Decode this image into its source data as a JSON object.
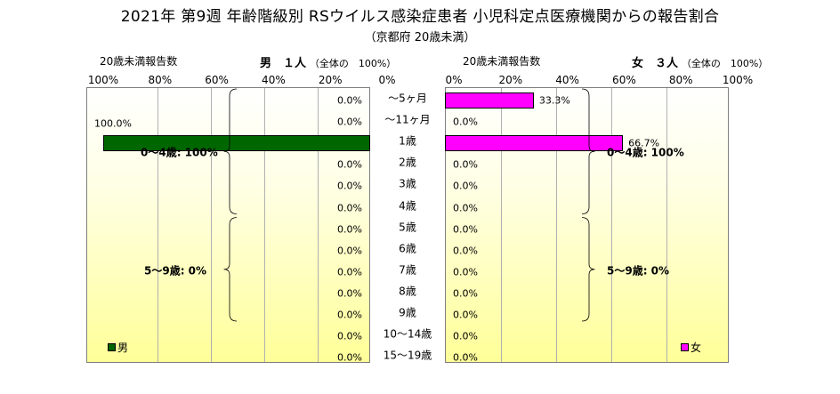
{
  "title": "2021年 第9週 年齢階級別 RSウイルス感染症患者 小児科定点医療機関からの報告割合",
  "subtitle": "（京都府 20歳未満）",
  "chart_data": {
    "type": "bar",
    "categories": [
      "～5ヶ月",
      "～11ヶ月",
      "1歳",
      "2歳",
      "3歳",
      "4歳",
      "5歳",
      "6歳",
      "7歳",
      "8歳",
      "9歳",
      "10～14歳",
      "15～19歳"
    ],
    "xlim": [
      0,
      100
    ],
    "ticks_male": [
      "100%",
      "80%",
      "60%",
      "40%",
      "20%",
      "0%"
    ],
    "ticks_female": [
      "0%",
      "20%",
      "40%",
      "60%",
      "80%",
      "100%"
    ],
    "series": [
      {
        "name": "男",
        "color": "#006600",
        "values": [
          0,
          0,
          100,
          0,
          0,
          0,
          0,
          0,
          0,
          0,
          0,
          0,
          0
        ],
        "labels": [
          "0.0%",
          "0.0%",
          "100.0%",
          "0.0%",
          "0.0%",
          "0.0%",
          "0.0%",
          "0.0%",
          "0.0%",
          "0.0%",
          "0.0%",
          "0.0%",
          "0.0%"
        ],
        "header": {
          "count_label": "20歳未満報告数",
          "sex_count": "男　１人",
          "total_suffix": "（全体の　100%）"
        },
        "groups": [
          {
            "label": "0～4歳: 100%",
            "from": 0,
            "to": 5
          },
          {
            "label": "5～9歳: 0%",
            "from": 6,
            "to": 10
          }
        ]
      },
      {
        "name": "女",
        "color": "#ff00ff",
        "values": [
          33.3,
          0,
          66.7,
          0,
          0,
          0,
          0,
          0,
          0,
          0,
          0,
          0,
          0
        ],
        "labels": [
          "33.3%",
          "0.0%",
          "66.7%",
          "0.0%",
          "0.0%",
          "0.0%",
          "0.0%",
          "0.0%",
          "0.0%",
          "0.0%",
          "0.0%",
          "0.0%",
          "0.0%"
        ],
        "header": {
          "count_label": "20歳未満報告数",
          "sex_count": "女　３人",
          "total_suffix": "（全体の　100%）"
        },
        "groups": [
          {
            "label": "0～4歳: 100%",
            "from": 0,
            "to": 5
          },
          {
            "label": "5～9歳: 0%",
            "from": 6,
            "to": 10
          }
        ]
      }
    ],
    "legend": [
      "男",
      "女"
    ],
    "grid": true,
    "background": "yellow gradient"
  }
}
